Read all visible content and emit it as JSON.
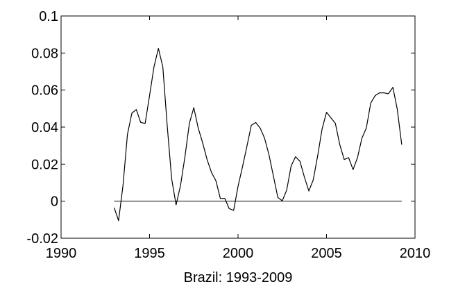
{
  "chart_data": {
    "type": "line",
    "title": "",
    "xlabel": "Brazil: 1993-2009",
    "ylabel": "",
    "xlim": [
      1990,
      2010
    ],
    "ylim": [
      -0.02,
      0.1
    ],
    "xticks": [
      1990,
      1995,
      2000,
      2005,
      2010
    ],
    "yticks": [
      -0.02,
      0,
      0.02,
      0.04,
      0.06,
      0.08,
      0.1
    ],
    "xtick_labels": [
      "1990",
      "1995",
      "2000",
      "2005",
      "2010"
    ],
    "ytick_labels": [
      "-0.02",
      "0",
      "0.02",
      "0.04",
      "0.06",
      "0.08",
      "0.1"
    ],
    "grid": false,
    "line_color": "#000000",
    "reference_line": {
      "y": 0,
      "x_start": 1993.0,
      "x_end": 2009.25
    },
    "series": [
      {
        "x": [
          1993.0,
          1993.25,
          1993.5,
          1993.75,
          1994.0,
          1994.25,
          1994.5,
          1994.75,
          1995.0,
          1995.25,
          1995.5,
          1995.75,
          1996.0,
          1996.25,
          1996.5,
          1996.75,
          1997.0,
          1997.25,
          1997.5,
          1997.75,
          1998.0,
          1998.25,
          1998.5,
          1998.75,
          1999.0,
          1999.25,
          1999.5,
          1999.75,
          2000.0,
          2000.25,
          2000.5,
          2000.75,
          2001.0,
          2001.25,
          2001.5,
          2001.75,
          2002.0,
          2002.25,
          2002.5,
          2002.75,
          2003.0,
          2003.25,
          2003.5,
          2003.75,
          2004.0,
          2004.25,
          2004.5,
          2004.75,
          2005.0,
          2005.25,
          2005.5,
          2005.75,
          2006.0,
          2006.25,
          2006.5,
          2006.75,
          2007.0,
          2007.25,
          2007.5,
          2007.75,
          2008.0,
          2008.25,
          2008.5,
          2008.75,
          2009.0,
          2009.25
        ],
        "values": [
          -0.0035,
          -0.0105,
          0.0085,
          0.036,
          0.0475,
          0.0495,
          0.0425,
          0.042,
          0.057,
          0.0725,
          0.0825,
          0.0725,
          0.0405,
          0.012,
          -0.002,
          0.0085,
          0.024,
          0.042,
          0.0505,
          0.0395,
          0.0315,
          0.0225,
          0.0155,
          0.011,
          0.0015,
          0.0015,
          -0.004,
          -0.005,
          0.008,
          0.0185,
          0.0295,
          0.041,
          0.0425,
          0.0395,
          0.034,
          0.025,
          0.0135,
          0.002,
          0.0002,
          0.006,
          0.019,
          0.024,
          0.0215,
          0.013,
          0.0055,
          0.0115,
          0.0245,
          0.039,
          0.048,
          0.045,
          0.042,
          0.0305,
          0.0225,
          0.0235,
          0.017,
          0.0235,
          0.034,
          0.0395,
          0.053,
          0.057,
          0.0585,
          0.0585,
          0.058,
          0.0615,
          0.0495,
          0.0305
        ]
      }
    ]
  }
}
